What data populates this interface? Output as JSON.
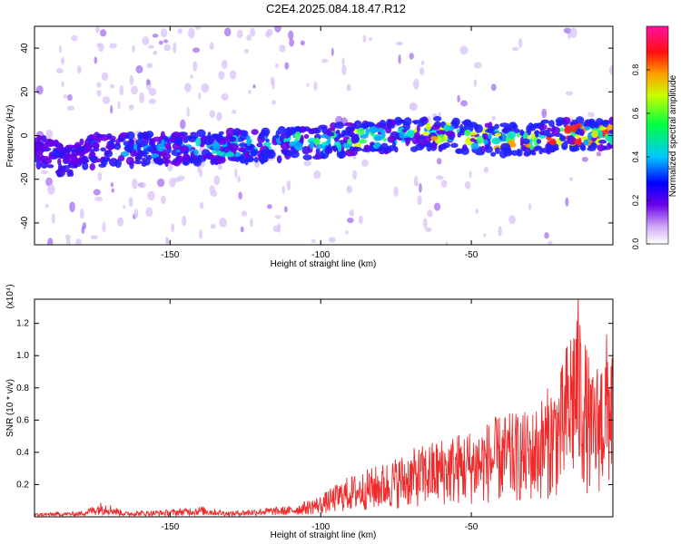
{
  "title": "C2E4.2025.084.18.47.R12",
  "colors": {
    "snr_line": "#ee2a2a",
    "spectrogram_palette": "rainbow (white-violet → blue → cyan → green → yellow → red → magenta)"
  },
  "chart_data": [
    {
      "type": "heatmap",
      "title": "C2E4.2025.084.18.47.R12",
      "xlabel": "Height of straight line (km)",
      "ylabel": "Frequency (Hz)",
      "xlim": [
        -195,
        -3
      ],
      "ylim": [
        -50,
        50
      ],
      "xticks": [
        -150,
        -100,
        -50
      ],
      "yticks": [
        -40,
        -20,
        0,
        20,
        40
      ],
      "grid": false,
      "colorbar": {
        "label": "Normalized spectral amplitude",
        "range": [
          0,
          1
        ],
        "ticks": [
          "0.0",
          "0.2",
          "0.4",
          "0.6",
          "0.8"
        ]
      },
      "ridge": [
        {
          "x": -195,
          "y": -6
        },
        {
          "x": -185,
          "y": -12
        },
        {
          "x": -175,
          "y": -7
        },
        {
          "x": -150,
          "y": -6
        },
        {
          "x": -125,
          "y": -5
        },
        {
          "x": -100,
          "y": -3
        },
        {
          "x": -75,
          "y": 0
        },
        {
          "x": -60,
          "y": 1
        },
        {
          "x": -45,
          "y": -2
        },
        {
          "x": -30,
          "y": -2
        },
        {
          "x": -20,
          "y": 1
        },
        {
          "x": -3,
          "y": 0
        }
      ]
    },
    {
      "type": "line",
      "xlabel": "Height of straight line (km)",
      "ylabel": "SNR (10 * v/v)",
      "y_multiplier": "(x10⁴)",
      "xlim": [
        -195,
        -3
      ],
      "ylim": [
        0,
        1.35
      ],
      "xticks": [
        -150,
        -100,
        -50
      ],
      "yticks": [
        "0.2",
        "0.4",
        "0.6",
        "0.8",
        "1.0",
        "1.2"
      ],
      "grid": false,
      "series": [
        {
          "x": [
            -195,
            -180,
            -172,
            -165,
            -150,
            -140,
            -130,
            -120,
            -110,
            -100,
            -92,
            -80,
            -70,
            -60,
            -50,
            -40,
            -30,
            -20,
            -15,
            -10,
            -3
          ],
          "y": [
            0.02,
            0.03,
            0.09,
            0.03,
            0.04,
            0.06,
            0.03,
            0.05,
            0.06,
            0.12,
            0.22,
            0.3,
            0.38,
            0.45,
            0.5,
            0.58,
            0.6,
            0.85,
            1.3,
            0.8,
            1.15
          ]
        }
      ]
    }
  ]
}
